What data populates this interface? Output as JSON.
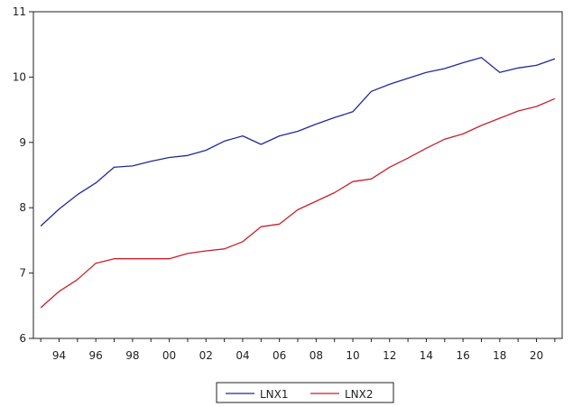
{
  "chart_data": {
    "type": "line",
    "title": "",
    "xlabel": "",
    "ylabel": "",
    "xlim": [
      1992.6,
      2021.4
    ],
    "ylim": [
      6,
      11
    ],
    "y_ticks": [
      6,
      7,
      8,
      9,
      10,
      11
    ],
    "y_tick_labels": [
      "6",
      "7",
      "8",
      "9",
      "10",
      "11"
    ],
    "x_tick_years": [
      1994,
      1996,
      1998,
      2000,
      2002,
      2004,
      2006,
      2008,
      2010,
      2012,
      2014,
      2016,
      2018,
      2020
    ],
    "x_tick_labels": [
      "94",
      "96",
      "98",
      "00",
      "02",
      "04",
      "06",
      "08",
      "10",
      "12",
      "14",
      "16",
      "18",
      "20"
    ],
    "grid": false,
    "legend": "bottom-center",
    "x": [
      1993,
      1994,
      1995,
      1996,
      1997,
      1998,
      1999,
      2000,
      2001,
      2002,
      2003,
      2004,
      2005,
      2006,
      2007,
      2008,
      2009,
      2010,
      2011,
      2012,
      2013,
      2014,
      2015,
      2016,
      2017,
      2018,
      2019,
      2020,
      2021
    ],
    "series": [
      {
        "name": "LNX1",
        "color": "#1f2a9c",
        "values": [
          7.72,
          7.98,
          8.2,
          8.38,
          8.62,
          8.64,
          8.71,
          8.77,
          8.8,
          8.88,
          9.02,
          9.1,
          8.97,
          9.1,
          9.17,
          9.28,
          9.38,
          9.47,
          9.78,
          9.89,
          9.98,
          10.07,
          10.13,
          10.22,
          10.3,
          10.07,
          10.14,
          10.18,
          10.28
        ]
      },
      {
        "name": "LNX2",
        "color": "#c8202a",
        "values": [
          6.47,
          6.72,
          6.9,
          7.15,
          7.22,
          7.22,
          7.22,
          7.22,
          7.3,
          7.34,
          7.37,
          7.48,
          7.71,
          7.75,
          7.97,
          8.1,
          8.23,
          8.4,
          8.44,
          8.62,
          8.76,
          8.91,
          9.05,
          9.13,
          9.26,
          9.37,
          9.48,
          9.55,
          9.67
        ]
      }
    ]
  }
}
